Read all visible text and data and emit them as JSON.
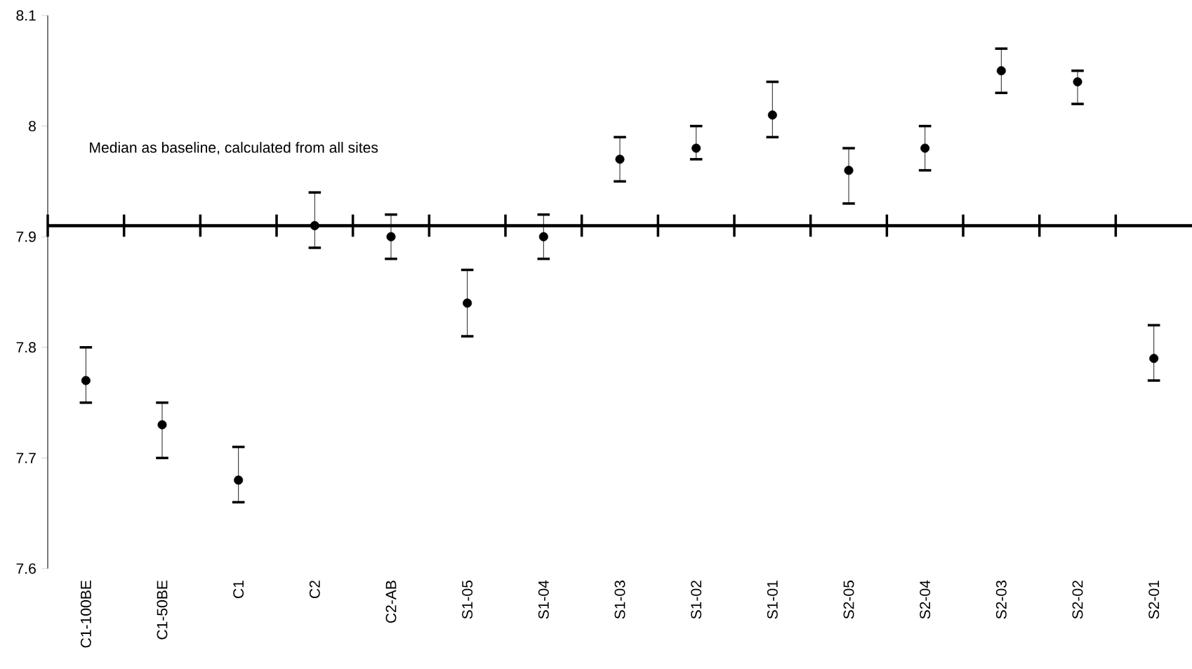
{
  "chart_data": {
    "type": "scatter",
    "categories": [
      "C1-100BE",
      "C1-50BE",
      "C1",
      "C2",
      "C2-AB",
      "S1-05",
      "S1-04",
      "S1-03",
      "S1-02",
      "S1-01",
      "S2-05",
      "S2-04",
      "S2-03",
      "S2-02",
      "S2-01"
    ],
    "values": [
      7.77,
      7.73,
      7.68,
      7.91,
      7.9,
      7.84,
      7.9,
      7.97,
      7.98,
      8.01,
      7.96,
      7.98,
      8.05,
      8.04,
      7.79
    ],
    "errors": [
      [
        7.75,
        7.8
      ],
      [
        7.7,
        7.75
      ],
      [
        7.66,
        7.71
      ],
      [
        7.89,
        7.94
      ],
      [
        7.88,
        7.92
      ],
      [
        7.81,
        7.87
      ],
      [
        7.88,
        7.92
      ],
      [
        7.95,
        7.99
      ],
      [
        7.97,
        8.0
      ],
      [
        7.99,
        8.04
      ],
      [
        7.93,
        7.98
      ],
      [
        7.96,
        8.0
      ],
      [
        8.03,
        8.07
      ],
      [
        8.02,
        8.05
      ],
      [
        7.77,
        7.82
      ]
    ],
    "color": "#000000",
    "marker": "circle",
    "ylim": [
      7.6,
      8.1
    ],
    "yticks": [
      {
        "value": 7.6,
        "label": "7.6"
      },
      {
        "value": 7.7,
        "label": "7.7"
      },
      {
        "value": 7.8,
        "label": "7.8"
      },
      {
        "value": 7.9,
        "label": "7.9"
      },
      {
        "value": 8.0,
        "label": "8"
      },
      {
        "value": 8.1,
        "label": "8.1"
      }
    ],
    "ref_lines": [
      {
        "axis": "y",
        "value": 7.91,
        "label": "Median as baseline, calculated from all sites",
        "color": "#000000"
      }
    ],
    "grid": false
  }
}
